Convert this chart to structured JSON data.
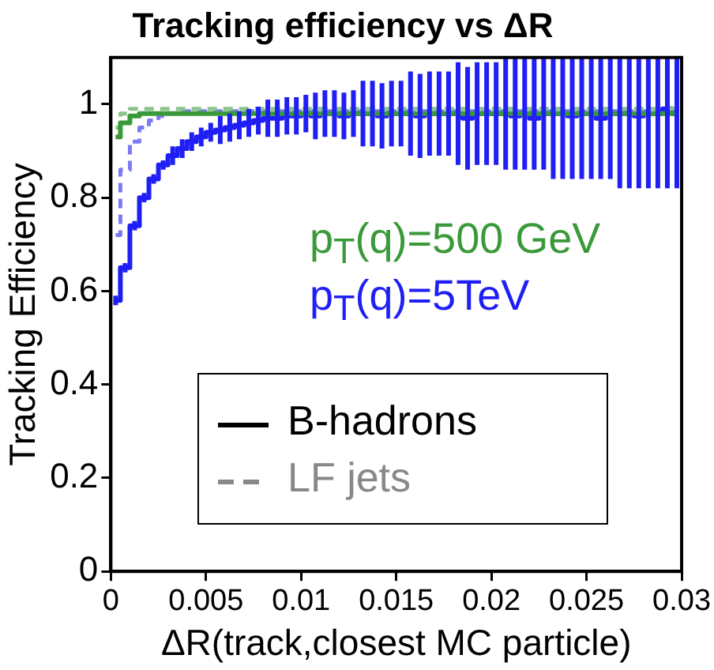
{
  "chart_data": {
    "type": "step",
    "title": "Tracking efficiency vs ΔR",
    "xlabel": "ΔR(track,closest MC particle)",
    "ylabel": "Tracking Efficiency",
    "x": [
      0.00025,
      0.00075,
      0.00125,
      0.00175,
      0.00225,
      0.00275,
      0.00325,
      0.00375,
      0.00425,
      0.00475,
      0.00525,
      0.00575,
      0.00625,
      0.00675,
      0.00725,
      0.00775,
      0.00825,
      0.00875,
      0.00925,
      0.00975,
      0.01025,
      0.01075,
      0.01125,
      0.01175,
      0.01225,
      0.01275,
      0.01325,
      0.01375,
      0.01425,
      0.01475,
      0.01525,
      0.01575,
      0.01625,
      0.01675,
      0.01725,
      0.01775,
      0.01825,
      0.01875,
      0.01925,
      0.01975,
      0.02025,
      0.02075,
      0.02125,
      0.02175,
      0.02225,
      0.02275,
      0.02325,
      0.02375,
      0.02425,
      0.02475,
      0.02525,
      0.02575,
      0.02625,
      0.02675,
      0.02725,
      0.02775,
      0.02825,
      0.02875,
      0.02925,
      0.02975
    ],
    "series": [
      {
        "color": "#3a9a3a",
        "line_style": "solid",
        "values": [
          0.93,
          0.96,
          0.975,
          0.98,
          0.98,
          0.98,
          0.98,
          0.98,
          0.98,
          0.98,
          0.98,
          0.98,
          0.98,
          0.98,
          0.98,
          0.98,
          0.98,
          0.98,
          0.98,
          0.98,
          0.98,
          0.98,
          0.98,
          0.98,
          0.98,
          0.98,
          0.98,
          0.98,
          0.98,
          0.98,
          0.98,
          0.98,
          0.98,
          0.98,
          0.98,
          0.98,
          0.98,
          0.98,
          0.98,
          0.98,
          0.98,
          0.98,
          0.98,
          0.98,
          0.98,
          0.98,
          0.98,
          0.98,
          0.98,
          0.98,
          0.98,
          0.98,
          0.98,
          0.98,
          0.98,
          0.98,
          0.98,
          0.98,
          0.98,
          0.98
        ]
      },
      {
        "color": "#8cc48c",
        "line_style": "dashed",
        "values": [
          0.95,
          0.98,
          0.99,
          0.99,
          0.99,
          0.99,
          0.99,
          0.99,
          0.99,
          0.99,
          0.99,
          0.99,
          0.99,
          0.99,
          0.99,
          0.99,
          0.99,
          0.99,
          0.99,
          0.99,
          0.99,
          0.99,
          0.99,
          0.99,
          0.99,
          0.99,
          0.99,
          0.99,
          0.99,
          0.99,
          0.99,
          0.99,
          0.99,
          0.99,
          0.99,
          0.99,
          0.99,
          0.99,
          0.99,
          0.99,
          0.99,
          0.99,
          0.99,
          0.99,
          0.99,
          0.99,
          0.99,
          0.99,
          0.99,
          0.99,
          0.99,
          0.99,
          0.99,
          0.99,
          0.99,
          0.99,
          0.99,
          0.99,
          0.99,
          0.99
        ]
      },
      {
        "color": "#1f1ff5",
        "line_style": "solid",
        "values": [
          0.58,
          0.65,
          0.74,
          0.8,
          0.84,
          0.87,
          0.89,
          0.905,
          0.92,
          0.93,
          0.94,
          0.945,
          0.95,
          0.955,
          0.96,
          0.965,
          0.97,
          0.97,
          0.975,
          0.975,
          0.98,
          0.975,
          0.98,
          0.98,
          0.975,
          0.98,
          0.98,
          0.98,
          0.975,
          0.98,
          0.98,
          0.98,
          0.975,
          0.98,
          0.98,
          0.98,
          0.98,
          0.97,
          0.98,
          0.98,
          0.98,
          0.98,
          0.975,
          0.98,
          0.97,
          0.98,
          0.98,
          0.98,
          0.975,
          0.98,
          0.98,
          0.97,
          0.98,
          0.98,
          0.98,
          0.975,
          0.98,
          0.98,
          0.99,
          0.98
        ],
        "errors": [
          0.01,
          0.01,
          0.01,
          0.01,
          0.01,
          0.01,
          0.02,
          0.02,
          0.02,
          0.02,
          0.02,
          0.03,
          0.03,
          0.03,
          0.03,
          0.03,
          0.04,
          0.04,
          0.04,
          0.04,
          0.04,
          0.05,
          0.05,
          0.05,
          0.05,
          0.05,
          0.07,
          0.07,
          0.07,
          0.07,
          0.07,
          0.09,
          0.09,
          0.09,
          0.09,
          0.09,
          0.11,
          0.11,
          0.11,
          0.11,
          0.11,
          [
            0.86,
            1.1
          ],
          [
            0.86,
            1.1
          ],
          [
            0.86,
            1.1
          ],
          [
            0.86,
            1.1
          ],
          [
            0.86,
            1.1
          ],
          [
            0.84,
            1.1
          ],
          [
            0.84,
            1.1
          ],
          [
            0.84,
            1.1
          ],
          [
            0.84,
            1.1
          ],
          [
            0.84,
            1.1
          ],
          [
            0.84,
            1.1
          ],
          [
            0.84,
            1.1
          ],
          [
            0.82,
            1.1
          ],
          [
            0.82,
            1.1
          ],
          [
            0.82,
            1.1
          ],
          [
            0.82,
            1.1
          ],
          [
            0.82,
            1.1
          ],
          [
            0.82,
            1.1
          ],
          [
            0.82,
            1.1
          ]
        ]
      },
      {
        "color": "#7a7af5",
        "line_style": "dashed",
        "values": [
          0.72,
          0.86,
          0.92,
          0.95,
          0.965,
          0.975,
          0.98,
          0.985,
          0.985,
          0.985,
          0.985,
          0.985,
          0.985,
          0.985,
          0.985,
          0.985,
          0.985,
          0.985,
          0.985,
          0.985,
          0.985,
          0.985,
          0.985,
          0.985,
          0.985,
          0.985,
          0.985,
          0.985,
          0.985,
          0.985,
          0.985,
          0.985,
          0.985,
          0.985,
          0.985,
          0.985,
          0.985,
          0.985,
          0.985,
          0.985,
          0.985,
          0.985,
          0.985,
          0.985,
          0.985,
          0.985,
          0.985,
          0.985,
          0.985,
          0.985,
          0.985,
          0.985,
          0.985,
          0.985,
          0.985,
          0.985,
          0.985,
          0.985,
          0.985,
          null
        ]
      }
    ],
    "xlim": [
      0,
      0.03
    ],
    "xticks": [
      0,
      0.005,
      0.01,
      0.015,
      0.02,
      0.025,
      0.03
    ],
    "ylim": [
      0,
      1.1
    ],
    "yticks": [
      0,
      0.2,
      0.4,
      0.6,
      0.8,
      1
    ],
    "annotations": [
      "p$_{T}$(q)=500 GeV",
      "p$_{T}$(q)=5TeV",
      "B-hadrons",
      "LF jets"
    ]
  }
}
